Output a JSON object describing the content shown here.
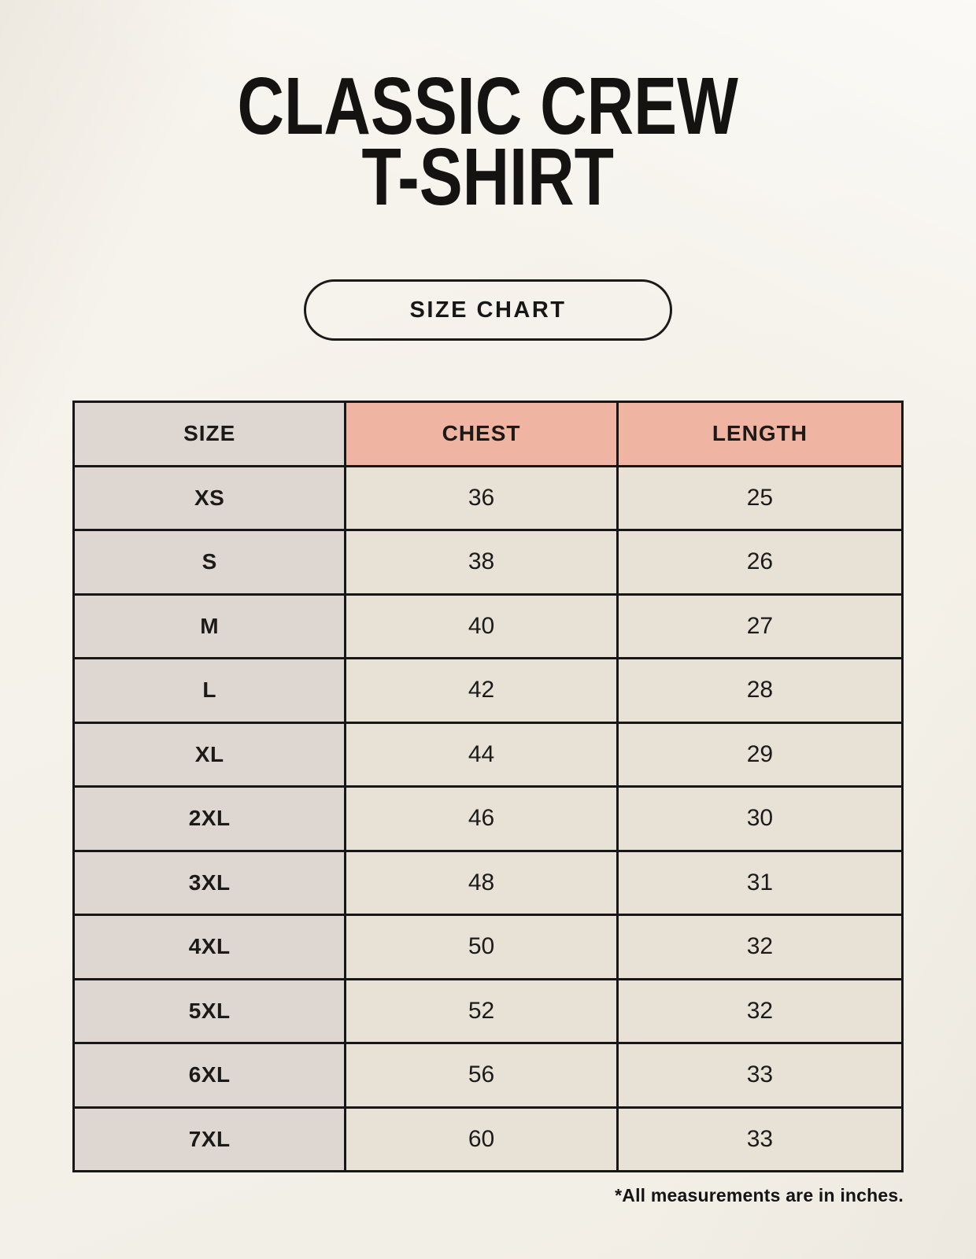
{
  "page": {
    "title_line1": "CLASSIC CREW",
    "title_line2": "T-SHIRT",
    "badge_label": "SIZE CHART",
    "footnote": "*All measurements are in inches."
  },
  "colors": {
    "page_background": "#f4f1e9",
    "header_accent": "#f0b5a2",
    "size_column_cell": "#ddd6d1",
    "data_cell": "#e8e1d5",
    "table_border": "#171717",
    "text": "#1a1a1a"
  },
  "size_table": {
    "columns": [
      "SIZE",
      "CHEST",
      "LENGTH"
    ],
    "rows": [
      [
        "XS",
        "36",
        "25"
      ],
      [
        "S",
        "38",
        "26"
      ],
      [
        "M",
        "40",
        "27"
      ],
      [
        "L",
        "42",
        "28"
      ],
      [
        "XL",
        "44",
        "29"
      ],
      [
        "2XL",
        "46",
        "30"
      ],
      [
        "3XL",
        "48",
        "31"
      ],
      [
        "4XL",
        "50",
        "32"
      ],
      [
        "5XL",
        "52",
        "32"
      ],
      [
        "6XL",
        "56",
        "33"
      ],
      [
        "7XL",
        "60",
        "33"
      ]
    ]
  },
  "chart_data": {
    "type": "table",
    "title": "CLASSIC CREW T-SHIRT",
    "columns": [
      "SIZE",
      "CHEST",
      "LENGTH"
    ],
    "rows": [
      [
        "XS",
        36,
        25
      ],
      [
        "S",
        38,
        26
      ],
      [
        "M",
        40,
        27
      ],
      [
        "L",
        42,
        28
      ],
      [
        "XL",
        44,
        29
      ],
      [
        "2XL",
        46,
        30
      ],
      [
        "3XL",
        48,
        31
      ],
      [
        "4XL",
        50,
        32
      ],
      [
        "5XL",
        52,
        32
      ],
      [
        "6XL",
        56,
        33
      ],
      [
        "7XL",
        60,
        33
      ]
    ],
    "units": "inches"
  }
}
